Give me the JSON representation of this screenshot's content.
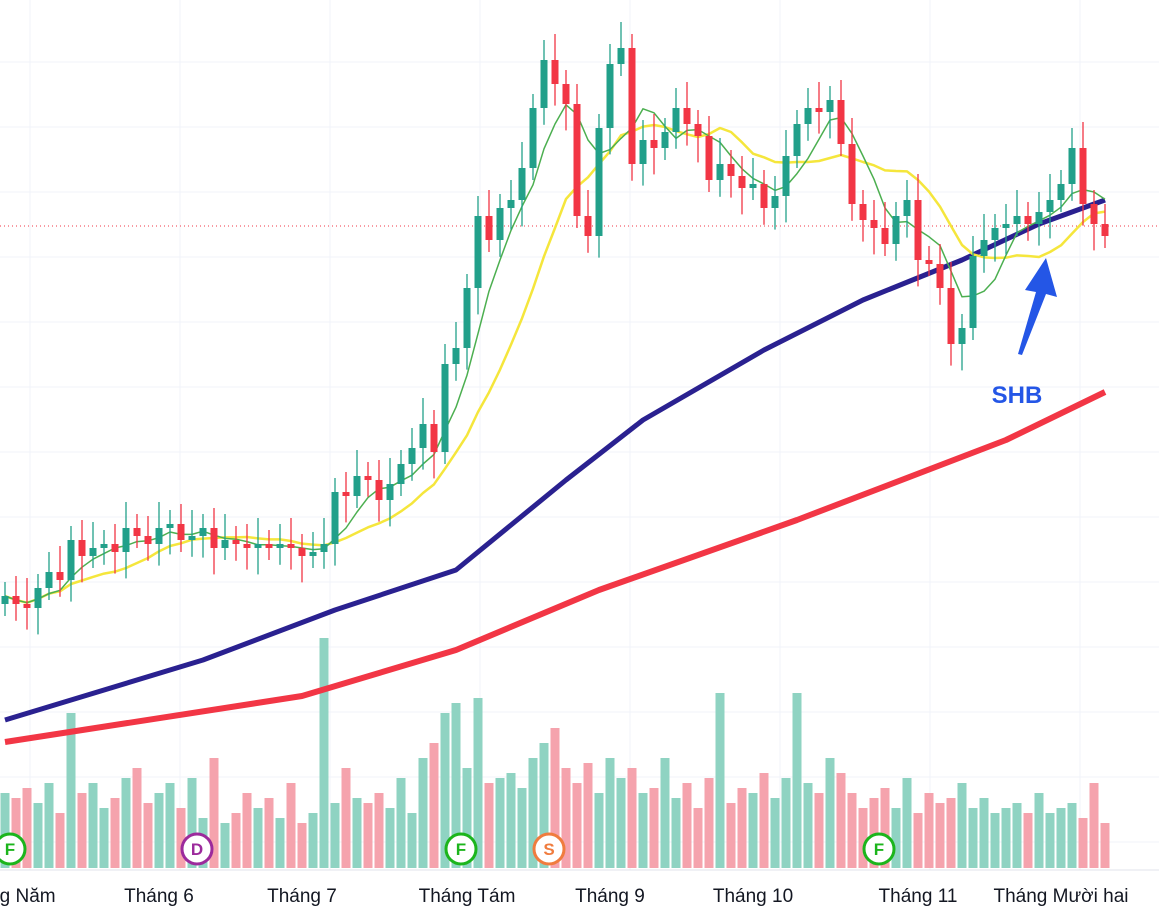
{
  "chart_data": {
    "type": "candlestick",
    "symbol_label": "SHB",
    "x_labels": [
      "Tháng Năm",
      "Tháng 6",
      "Tháng 7",
      "Tháng Tám",
      "Tháng 9",
      "Tháng 10",
      "Tháng 11",
      "Tháng Mười hai"
    ],
    "x_label_index": [
      1,
      14,
      27,
      42,
      55,
      68,
      83,
      96
    ],
    "close": [
      12.6,
      12.4,
      12.3,
      12.8,
      13.2,
      13.0,
      14.0,
      13.6,
      13.8,
      13.9,
      13.7,
      14.3,
      14.1,
      13.9,
      14.3,
      14.4,
      14.0,
      14.1,
      14.3,
      13.8,
      14.0,
      13.9,
      13.8,
      13.9,
      13.8,
      13.9,
      13.8,
      13.6,
      13.7,
      13.9,
      15.2,
      15.1,
      15.6,
      15.5,
      15.0,
      15.4,
      15.9,
      16.3,
      16.9,
      16.2,
      18.4,
      18.8,
      20.3,
      22.1,
      21.5,
      22.3,
      22.5,
      23.3,
      24.8,
      26.0,
      25.4,
      24.9,
      22.1,
      21.6,
      24.3,
      25.9,
      26.3,
      23.4,
      24.0,
      23.8,
      24.2,
      24.8,
      24.4,
      24.1,
      23.0,
      23.4,
      23.1,
      22.8,
      22.9,
      22.3,
      22.6,
      23.6,
      24.4,
      24.8,
      24.7,
      25.0,
      23.9,
      22.4,
      22.0,
      21.8,
      21.4,
      22.1,
      22.5,
      21.0,
      20.9,
      20.3,
      18.9,
      19.3,
      21.1,
      21.5,
      21.8,
      21.9,
      22.1,
      21.9,
      22.2,
      22.5,
      22.9,
      23.8,
      22.4,
      21.9,
      21.6
    ],
    "volume": [
      30,
      28,
      32,
      26,
      34,
      22,
      62,
      30,
      34,
      24,
      28,
      36,
      40,
      26,
      30,
      34,
      24,
      36,
      20,
      44,
      18,
      22,
      30,
      24,
      28,
      20,
      34,
      18,
      22,
      92,
      26,
      40,
      28,
      26,
      30,
      24,
      36,
      22,
      44,
      50,
      62,
      66,
      40,
      68,
      34,
      36,
      38,
      32,
      44,
      50,
      56,
      40,
      34,
      42,
      30,
      44,
      36,
      40,
      30,
      32,
      44,
      28,
      34,
      24,
      36,
      70,
      26,
      32,
      30,
      38,
      28,
      36,
      70,
      34,
      30,
      44,
      38,
      30,
      24,
      28,
      32,
      24,
      36,
      22,
      30,
      26,
      28,
      34,
      24,
      28,
      22,
      24,
      26,
      22,
      30,
      22,
      24,
      26,
      20,
      34,
      18
    ],
    "ma_short_period": 5,
    "ma_mid_period": 12,
    "ma_long": {
      "index": [
        0,
        18,
        30,
        41,
        51,
        58,
        69,
        78,
        87,
        94,
        100
      ],
      "value": [
        9.5,
        11.0,
        12.25,
        13.25,
        15.5,
        17.0,
        18.75,
        20.0,
        21.0,
        21.9,
        22.5
      ]
    },
    "ma_longest": {
      "index": [
        0,
        27,
        41,
        54,
        72,
        91,
        100
      ],
      "value": [
        8.95,
        10.1,
        11.25,
        12.75,
        14.5,
        16.5,
        17.7
      ]
    },
    "last_price": 21.85,
    "events": [
      {
        "letter": "F",
        "index": 0,
        "color": "#1cb51c"
      },
      {
        "letter": "D",
        "index": 17,
        "color": "#9c2a9c"
      },
      {
        "letter": "F",
        "index": 41,
        "color": "#1cb51c"
      },
      {
        "letter": "S",
        "index": 49,
        "color": "#f07c3e"
      },
      {
        "letter": "F",
        "index": 79,
        "color": "#1cb51c"
      }
    ],
    "colors": {
      "up": "#22a08a",
      "down": "#f23645",
      "up_vol": "#8fd3c2",
      "down_vol": "#f5a3ad",
      "ma_short": "#4caf50",
      "ma_mid": "#f5e63c",
      "ma_long": "#2a2190",
      "ma_longest": "#f23645",
      "arrow": "#2456e6"
    }
  }
}
